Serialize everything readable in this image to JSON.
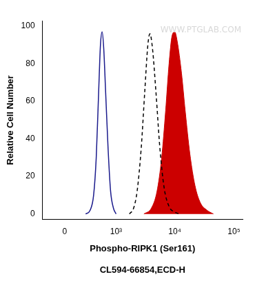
{
  "chart_data": {
    "type": "line",
    "xlabel": "Phospho-RIPK1 (Ser161)",
    "subtitle": "CL594-66854,ECD-H",
    "ylabel": "Relative Cell Number",
    "annotations": [
      "WWW.PTGLAB.COM"
    ],
    "xlim": [
      -270,
      140000
    ],
    "xticks": [
      0,
      {
        "value": 1000,
        "label": "10³"
      },
      {
        "value": 10000,
        "label": "10⁴"
      },
      {
        "value": 100000,
        "label": "10⁵"
      }
    ],
    "ylim": [
      -3,
      103
    ],
    "yticks": [
      0,
      20,
      40,
      60,
      80,
      100
    ],
    "grid": false,
    "series": [
      {
        "type": "line",
        "color": "#1a1a8c",
        "line_style": "solid",
        "x": [
          250,
          320,
          380,
          430,
          480,
          520,
          560,
          600,
          650,
          720,
          800,
          900,
          1000
        ],
        "values": [
          0,
          2,
          10,
          30,
          65,
          90,
          97,
          88,
          65,
          35,
          12,
          3,
          0
        ]
      },
      {
        "type": "line",
        "color": "#000000",
        "line_style": "dashed",
        "x": [
          1700,
          2000,
          2300,
          2700,
          3100,
          3500,
          3800,
          4200,
          4800,
          5600,
          6600,
          8000,
          10000,
          12000
        ],
        "values": [
          0,
          3,
          12,
          35,
          65,
          90,
          96,
          88,
          65,
          35,
          14,
          4,
          1,
          0
        ]
      },
      {
        "type": "area",
        "color": "#cc0000",
        "line_style": "solid",
        "x": [
          3000,
          4000,
          5000,
          6000,
          7000,
          8000,
          9000,
          10000,
          11000,
          13000,
          15000,
          18000,
          22000,
          27000,
          35000,
          45000
        ],
        "values": [
          0,
          3,
          12,
          30,
          55,
          80,
          95,
          97,
          92,
          75,
          55,
          32,
          15,
          6,
          2,
          0
        ]
      }
    ]
  }
}
